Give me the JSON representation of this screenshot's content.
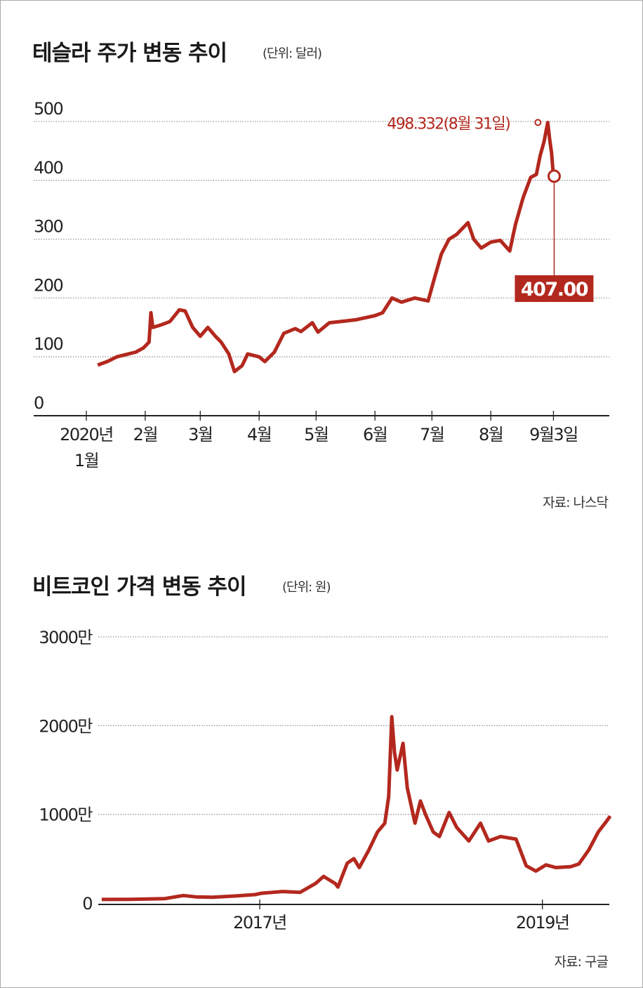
{
  "chart_data": [
    {
      "type": "line",
      "title": "테슬라 주가 변동 추이",
      "unit": "(단위: 달러)",
      "source": "자료: 나스닥",
      "ylim": [
        0,
        500
      ],
      "y_ticks": [
        "0",
        "100",
        "200",
        "300",
        "400",
        "500"
      ],
      "x_ticks": [
        {
          "date": "2020-01-01",
          "label": "2020년",
          "label2": "1월"
        },
        {
          "date": "2020-02-01",
          "label": "2월"
        },
        {
          "date": "2020-03-01",
          "label": "3월"
        },
        {
          "date": "2020-04-01",
          "label": "4월"
        },
        {
          "date": "2020-05-01",
          "label": "5월"
        },
        {
          "date": "2020-06-01",
          "label": "6월"
        },
        {
          "date": "2020-07-01",
          "label": "7월"
        },
        {
          "date": "2020-08-01",
          "label": "8월"
        },
        {
          "date": "2020-09-03",
          "label": "9월3일"
        }
      ],
      "grid": true,
      "line_color": "#b3281e",
      "series": [
        {
          "points": [
            [
              "2020-01-07",
              86
            ],
            [
              "2020-01-12",
              92
            ],
            [
              "2020-01-17",
              100
            ],
            [
              "2020-01-22",
              104
            ],
            [
              "2020-01-27",
              108
            ],
            [
              "2020-01-31",
              115
            ],
            [
              "2020-02-03",
              125
            ],
            [
              "2020-02-04",
              175
            ],
            [
              "2020-02-05",
              150
            ],
            [
              "2020-02-10",
              155
            ],
            [
              "2020-02-14",
              160
            ],
            [
              "2020-02-19",
              180
            ],
            [
              "2020-02-22",
              178
            ],
            [
              "2020-02-26",
              150
            ],
            [
              "2020-03-01",
              135
            ],
            [
              "2020-03-05",
              150
            ],
            [
              "2020-03-09",
              135
            ],
            [
              "2020-03-12",
              125
            ],
            [
              "2020-03-16",
              105
            ],
            [
              "2020-03-19",
              75
            ],
            [
              "2020-03-23",
              85
            ],
            [
              "2020-03-26",
              105
            ],
            [
              "2020-04-01",
              100
            ],
            [
              "2020-04-04",
              92
            ],
            [
              "2020-04-09",
              108
            ],
            [
              "2020-04-14",
              140
            ],
            [
              "2020-04-20",
              148
            ],
            [
              "2020-04-23",
              143
            ],
            [
              "2020-04-29",
              158
            ],
            [
              "2020-05-02",
              142
            ],
            [
              "2020-05-08",
              158
            ],
            [
              "2020-05-14",
              160
            ],
            [
              "2020-05-22",
              163
            ],
            [
              "2020-06-01",
              170
            ],
            [
              "2020-06-05",
              175
            ],
            [
              "2020-06-10",
              200
            ],
            [
              "2020-06-15",
              193
            ],
            [
              "2020-06-22",
              200
            ],
            [
              "2020-06-29",
              195
            ],
            [
              "2020-07-02",
              230
            ],
            [
              "2020-07-06",
              275
            ],
            [
              "2020-07-10",
              300
            ],
            [
              "2020-07-14",
              308
            ],
            [
              "2020-07-20",
              328
            ],
            [
              "2020-07-23",
              300
            ],
            [
              "2020-07-27",
              285
            ],
            [
              "2020-08-01",
              295
            ],
            [
              "2020-08-06",
              298
            ],
            [
              "2020-08-11",
              280
            ],
            [
              "2020-08-14",
              325
            ],
            [
              "2020-08-18",
              370
            ],
            [
              "2020-08-22",
              405
            ],
            [
              "2020-08-25",
              410
            ],
            [
              "2020-08-27",
              442
            ],
            [
              "2020-08-29",
              465
            ],
            [
              "2020-08-31",
              498.332
            ],
            [
              "2020-09-01",
              470
            ],
            [
              "2020-09-02",
              447
            ],
            [
              "2020-09-03",
              407
            ]
          ]
        }
      ],
      "annotations": {
        "peak": {
          "date": "2020-08-31",
          "value": 498.332,
          "label": "498.332(8월 31일)"
        },
        "current": {
          "date": "2020-09-03",
          "value": 407,
          "label": "407.00"
        }
      }
    },
    {
      "type": "line",
      "title": "비트코인 가격 변동 추이",
      "unit": "(단위: 원)",
      "source": "자료: 구글",
      "ylim": [
        0,
        3000
      ],
      "y_units": "만원",
      "y_ticks": [
        "0",
        "1000만",
        "2000만",
        "3000만"
      ],
      "x_ticks": [
        {
          "date": "2017-01-01",
          "label": "2017년"
        },
        {
          "date": "2019-01-01",
          "label": "2019년"
        }
      ],
      "grid": true,
      "line_color": "#b3281e",
      "series": [
        {
          "points": [
            [
              "2015-11-20",
              40
            ],
            [
              "2016-02-01",
              42
            ],
            [
              "2016-05-01",
              50
            ],
            [
              "2016-06-18",
              85
            ],
            [
              "2016-07-20",
              70
            ],
            [
              "2016-09-01",
              65
            ],
            [
              "2016-11-01",
              80
            ],
            [
              "2016-12-20",
              95
            ],
            [
              "2017-01-05",
              110
            ],
            [
              "2017-03-01",
              130
            ],
            [
              "2017-04-15",
              120
            ],
            [
              "2017-05-25",
              220
            ],
            [
              "2017-06-15",
              300
            ],
            [
              "2017-07-15",
              220
            ],
            [
              "2017-07-22",
              180
            ],
            [
              "2017-08-15",
              450
            ],
            [
              "2017-09-01",
              500
            ],
            [
              "2017-09-15",
              400
            ],
            [
              "2017-10-10",
              600
            ],
            [
              "2017-11-01",
              800
            ],
            [
              "2017-11-20",
              900
            ],
            [
              "2017-11-30",
              1200
            ],
            [
              "2017-12-08",
              2100
            ],
            [
              "2017-12-15",
              1700
            ],
            [
              "2017-12-22",
              1500
            ],
            [
              "2018-01-06",
              1800
            ],
            [
              "2018-01-17",
              1300
            ],
            [
              "2018-02-06",
              900
            ],
            [
              "2018-02-20",
              1150
            ],
            [
              "2018-03-05",
              1000
            ],
            [
              "2018-03-25",
              800
            ],
            [
              "2018-04-10",
              750
            ],
            [
              "2018-05-05",
              1020
            ],
            [
              "2018-05-25",
              850
            ],
            [
              "2018-06-25",
              700
            ],
            [
              "2018-07-25",
              900
            ],
            [
              "2018-08-15",
              700
            ],
            [
              "2018-09-15",
              750
            ],
            [
              "2018-10-25",
              720
            ],
            [
              "2018-11-20",
              420
            ],
            [
              "2018-12-15",
              360
            ],
            [
              "2019-01-10",
              430
            ],
            [
              "2019-02-05",
              400
            ],
            [
              "2019-03-15",
              410
            ],
            [
              "2019-04-05",
              440
            ],
            [
              "2019-05-01",
              600
            ],
            [
              "2019-05-25",
              800
            ],
            [
              "2019-06-15",
              920
            ],
            [
              "2019-06-25",
              980
            ]
          ]
        }
      ]
    }
  ]
}
